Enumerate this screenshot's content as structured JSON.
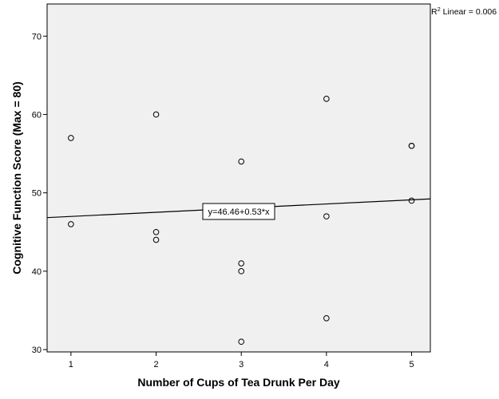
{
  "chart_data": {
    "type": "scatter",
    "xlabel": "Number of Cups of Tea Drunk Per Day",
    "ylabel": "Cognitive Function Score (Max = 80)",
    "xlim": [
      0.72,
      5.22
    ],
    "ylim": [
      29.7,
      74.1
    ],
    "xticks": [
      1,
      2,
      3,
      4,
      5
    ],
    "yticks": [
      30,
      40,
      50,
      60,
      70
    ],
    "grid": false,
    "plot_background": "#f0f0f0",
    "points": [
      {
        "x": 1,
        "y": 57
      },
      {
        "x": 1,
        "y": 46
      },
      {
        "x": 2,
        "y": 60
      },
      {
        "x": 2,
        "y": 45
      },
      {
        "x": 2,
        "y": 44
      },
      {
        "x": 3,
        "y": 54
      },
      {
        "x": 3,
        "y": 41
      },
      {
        "x": 3,
        "y": 40
      },
      {
        "x": 3,
        "y": 31
      },
      {
        "x": 4,
        "y": 62
      },
      {
        "x": 4,
        "y": 47
      },
      {
        "x": 4,
        "y": 34
      },
      {
        "x": 5,
        "y": 56
      },
      {
        "x": 5,
        "y": 56
      },
      {
        "x": 5,
        "y": 49
      }
    ],
    "fit_line": {
      "intercept": 46.46,
      "slope": 0.53
    },
    "equation_label": "y=46.46+0.53*x",
    "r2_prefix": "R",
    "r2_superscript": "2",
    "r2_text": " Linear = 0.006"
  }
}
